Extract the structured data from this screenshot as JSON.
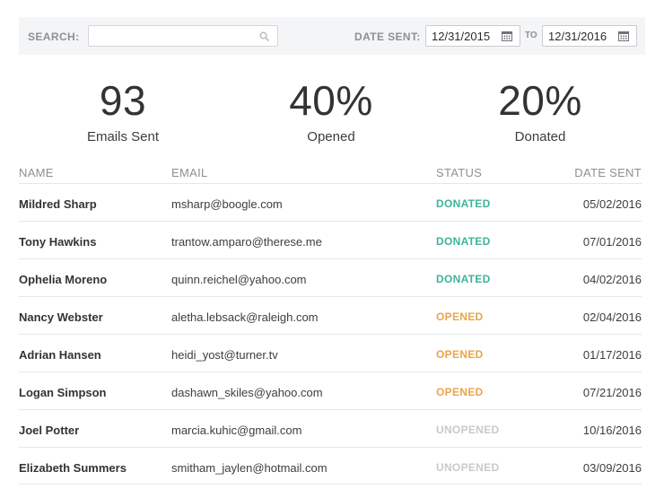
{
  "filters": {
    "search_label": "SEARCH:",
    "search_value": "",
    "search_placeholder": "",
    "date_label": "DATE SENT:",
    "date_from": "12/31/2015",
    "to_label": "TO",
    "date_to": "12/31/2016"
  },
  "stats": [
    {
      "value": "93",
      "label": "Emails Sent"
    },
    {
      "value": "40%",
      "label": "Opened"
    },
    {
      "value": "20%",
      "label": "Donated"
    }
  ],
  "table": {
    "headers": {
      "name": "NAME",
      "email": "EMAIL",
      "status": "STATUS",
      "date": "DATE SENT"
    },
    "rows": [
      {
        "name": "Mildred Sharp",
        "email": "msharp@boogle.com",
        "status": "DONATED",
        "date": "05/02/2016"
      },
      {
        "name": "Tony Hawkins",
        "email": "trantow.amparo@therese.me",
        "status": "DONATED",
        "date": "07/01/2016"
      },
      {
        "name": "Ophelia Moreno",
        "email": "quinn.reichel@yahoo.com",
        "status": "DONATED",
        "date": "04/02/2016"
      },
      {
        "name": "Nancy Webster",
        "email": "aletha.lebsack@raleigh.com",
        "status": "OPENED",
        "date": "02/04/2016"
      },
      {
        "name": "Adrian Hansen",
        "email": "heidi_yost@turner.tv",
        "status": "OPENED",
        "date": "01/17/2016"
      },
      {
        "name": "Logan Simpson",
        "email": "dashawn_skiles@yahoo.com",
        "status": "OPENED",
        "date": "07/21/2016"
      },
      {
        "name": "Joel Potter",
        "email": "marcia.kuhic@gmail.com",
        "status": "UNOPENED",
        "date": "10/16/2016"
      },
      {
        "name": "Elizabeth Summers",
        "email": "smitham_jaylen@hotmail.com",
        "status": "UNOPENED",
        "date": "03/09/2016"
      }
    ]
  },
  "colors": {
    "donated": "#3fb39a",
    "opened": "#e8a64a",
    "unopened": "#c8cacd"
  }
}
